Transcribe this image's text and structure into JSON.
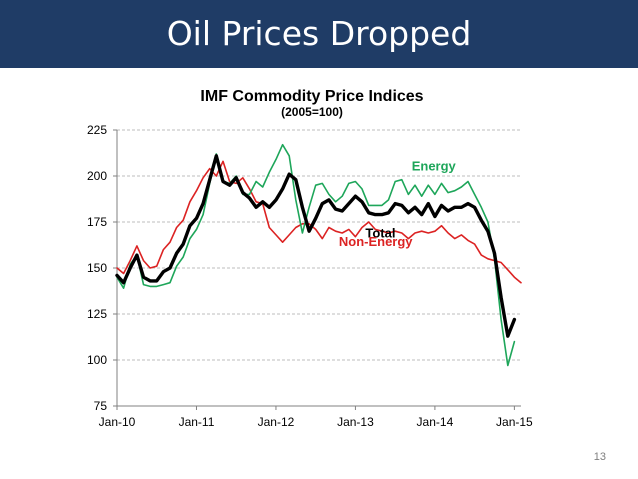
{
  "slide": {
    "title": "Oil Prices Dropped",
    "page_number": "13"
  },
  "colors": {
    "title_bar": "#1f3c66",
    "energy": "#1ea65a",
    "non_energy": "#dc2323",
    "total": "#000000"
  },
  "chart_data": {
    "type": "line",
    "title": "IMF Commodity Price Indices",
    "subtitle": "(2005=100)",
    "xlabel": "",
    "ylabel": "",
    "ylim": [
      75,
      225
    ],
    "yticks": [
      75,
      100,
      125,
      150,
      175,
      200,
      225
    ],
    "xlim": [
      0,
      61
    ],
    "xticks": [
      {
        "label": "Jan-10",
        "month": 0
      },
      {
        "label": "Jan-11",
        "month": 12
      },
      {
        "label": "Jan-12",
        "month": 24
      },
      {
        "label": "Jan-13",
        "month": 36
      },
      {
        "label": "Jan-14",
        "month": 48
      },
      {
        "label": "Jan-15",
        "month": 60
      }
    ],
    "grid": true,
    "series": [
      {
        "name": "Energy",
        "color": "#1ea65a",
        "stroke_width": 1.6,
        "months": [
          0,
          1,
          2,
          3,
          4,
          5,
          6,
          7,
          8,
          9,
          10,
          11,
          12,
          13,
          14,
          15,
          16,
          17,
          18,
          19,
          20,
          21,
          22,
          23,
          24,
          25,
          26,
          27,
          28,
          29,
          30,
          31,
          32,
          33,
          34,
          35,
          36,
          37,
          38,
          39,
          40,
          41,
          42,
          43,
          44,
          45,
          46,
          47,
          48,
          49,
          50,
          51,
          52,
          53,
          54,
          55,
          56,
          57,
          58,
          59,
          60,
          61
        ],
        "values": [
          145,
          139,
          152,
          157,
          141,
          140,
          140,
          141,
          142,
          151,
          156,
          166,
          171,
          179,
          196,
          212,
          197,
          196,
          200,
          190,
          190,
          197,
          194,
          202,
          209,
          217,
          211,
          187,
          169,
          183,
          195,
          196,
          190,
          186,
          189,
          196,
          197,
          193,
          184,
          184,
          184,
          187,
          197,
          198,
          190,
          195,
          189,
          195,
          190,
          196,
          191,
          192,
          194,
          197,
          190,
          183,
          175,
          155,
          122,
          97,
          110,
          null
        ]
      },
      {
        "name": "Non-Energy",
        "color": "#dc2323",
        "stroke_width": 1.6,
        "months": [
          0,
          1,
          2,
          3,
          4,
          5,
          6,
          7,
          8,
          9,
          10,
          11,
          12,
          13,
          14,
          15,
          16,
          17,
          18,
          19,
          20,
          21,
          22,
          23,
          24,
          25,
          26,
          27,
          28,
          29,
          30,
          31,
          32,
          33,
          34,
          35,
          36,
          37,
          38,
          39,
          40,
          41,
          42,
          43,
          44,
          45,
          46,
          47,
          48,
          49,
          50,
          51,
          52,
          53,
          54,
          55,
          56,
          57,
          58,
          59,
          60,
          61
        ],
        "values": [
          150,
          147,
          154,
          162,
          154,
          150,
          151,
          160,
          164,
          172,
          176,
          186,
          192,
          199,
          204,
          200,
          208,
          197,
          196,
          199,
          193,
          186,
          185,
          172,
          168,
          164,
          168,
          172,
          174,
          174,
          171,
          166,
          172,
          170,
          169,
          171,
          167,
          172,
          175,
          171,
          170,
          169,
          170,
          169,
          166,
          169,
          170,
          169,
          170,
          173,
          169,
          166,
          168,
          165,
          163,
          157,
          155,
          154,
          153,
          149,
          145,
          142
        ]
      },
      {
        "name": "Total",
        "color": "#000000",
        "stroke_width": 3.4,
        "months": [
          0,
          1,
          2,
          3,
          4,
          5,
          6,
          7,
          8,
          9,
          10,
          11,
          12,
          13,
          14,
          15,
          16,
          17,
          18,
          19,
          20,
          21,
          22,
          23,
          24,
          25,
          26,
          27,
          28,
          29,
          30,
          31,
          32,
          33,
          34,
          35,
          36,
          37,
          38,
          39,
          40,
          41,
          42,
          43,
          44,
          45,
          46,
          47,
          48,
          49,
          50,
          51,
          52,
          53,
          54,
          55,
          56,
          57,
          58,
          59,
          60,
          61
        ],
        "values": [
          146,
          142,
          150,
          157,
          145,
          143,
          143,
          148,
          150,
          158,
          163,
          173,
          177,
          185,
          198,
          211,
          197,
          195,
          199,
          191,
          188,
          183,
          186,
          183,
          187,
          193,
          201,
          198,
          183,
          170,
          177,
          185,
          187,
          182,
          181,
          185,
          189,
          186,
          180,
          179,
          179,
          180,
          185,
          184,
          180,
          183,
          179,
          185,
          178,
          184,
          181,
          183,
          183,
          185,
          183,
          176,
          170,
          158,
          134,
          113,
          122,
          null
        ]
      }
    ],
    "series_labels": [
      {
        "series": "Energy",
        "text": "Energy",
        "at_month": 44.5,
        "at_value": 203
      },
      {
        "series": "Total",
        "text": "Total",
        "at_month": 37.5,
        "at_value": 166.5
      },
      {
        "series": "Non-Energy",
        "text": "Non-Energy",
        "at_month": 33.5,
        "at_value": 162
      }
    ]
  }
}
